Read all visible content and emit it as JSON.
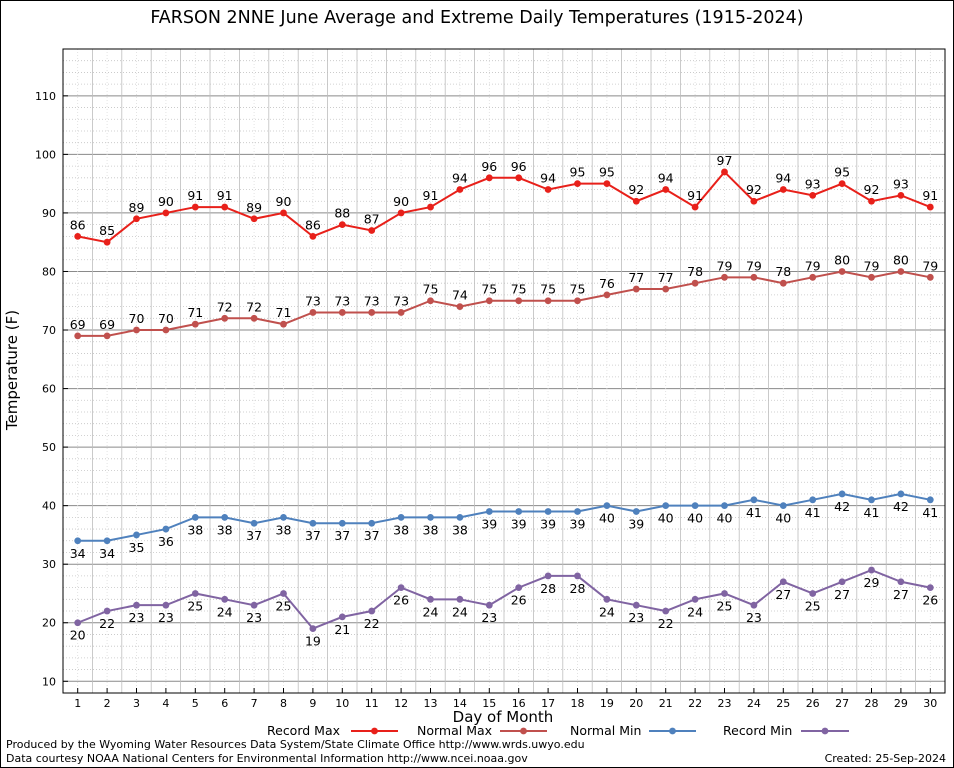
{
  "chart_data": {
    "type": "line",
    "title": "FARSON 2NNE June Average and Extreme Daily Temperatures (1915-2024)",
    "xlabel": "Day of Month",
    "ylabel": "Temperature (F)",
    "x": [
      1,
      2,
      3,
      4,
      5,
      6,
      7,
      8,
      9,
      10,
      11,
      12,
      13,
      14,
      15,
      16,
      17,
      18,
      19,
      20,
      21,
      22,
      23,
      24,
      25,
      26,
      27,
      28,
      29,
      30
    ],
    "xlim": [
      0.5,
      30.5
    ],
    "ylim": [
      8,
      118
    ],
    "yticks": [
      10,
      20,
      30,
      40,
      50,
      60,
      70,
      80,
      90,
      100,
      110
    ],
    "grid": true,
    "legend_position": "bottom",
    "series": [
      {
        "name": "Record Max",
        "color": "#e8201a",
        "label_position": "above",
        "values": [
          86,
          85,
          89,
          90,
          91,
          91,
          89,
          90,
          86,
          88,
          87,
          90,
          91,
          94,
          96,
          96,
          94,
          95,
          95,
          92,
          94,
          91,
          97,
          92,
          94,
          93,
          95,
          92,
          93,
          91
        ]
      },
      {
        "name": "Normal Max",
        "color": "#c0504d",
        "label_position": "above",
        "values": [
          69,
          69,
          70,
          70,
          71,
          72,
          72,
          71,
          73,
          73,
          73,
          73,
          75,
          74,
          75,
          75,
          75,
          75,
          76,
          77,
          77,
          78,
          79,
          79,
          78,
          79,
          80,
          79,
          80,
          79
        ]
      },
      {
        "name": "Normal Min",
        "color": "#4f81bd",
        "label_position": "below",
        "values": [
          34,
          34,
          35,
          36,
          38,
          38,
          37,
          38,
          37,
          37,
          37,
          38,
          38,
          38,
          39,
          39,
          39,
          39,
          40,
          39,
          40,
          40,
          40,
          41,
          40,
          41,
          42,
          41,
          42,
          41
        ]
      },
      {
        "name": "Record Min",
        "color": "#8064a2",
        "label_position": "below",
        "values": [
          20,
          22,
          23,
          23,
          25,
          24,
          23,
          25,
          19,
          21,
          22,
          26,
          24,
          24,
          23,
          26,
          28,
          28,
          24,
          23,
          22,
          24,
          25,
          23,
          27,
          25,
          27,
          29,
          27,
          26
        ]
      }
    ]
  },
  "footer": {
    "produced_by": "Produced by the Wyoming Water Resources Data System/State Climate Office http://www.wrds.uwyo.edu",
    "courtesy": "Data courtesy NOAA National Centers for Environmental Information http://www.ncei.noaa.gov",
    "created": "Created:  25-Sep-2024"
  }
}
